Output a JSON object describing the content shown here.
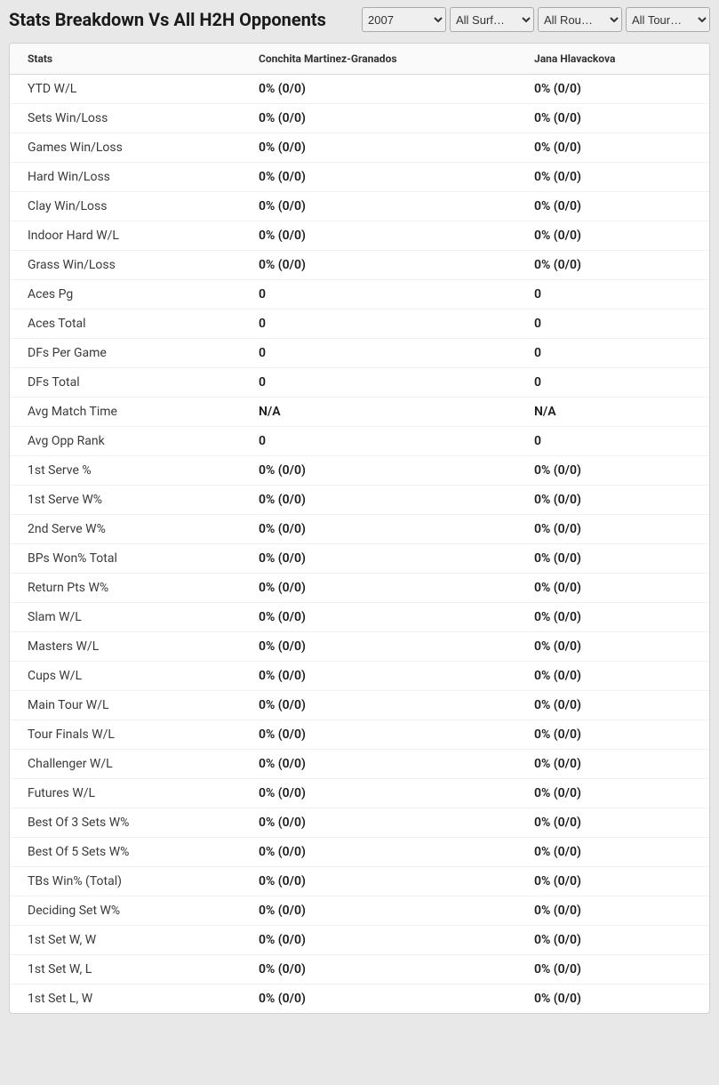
{
  "header": {
    "title": "Stats Breakdown Vs All H2H Opponents"
  },
  "filters": {
    "year": {
      "value": "2007",
      "options": [
        "2007"
      ]
    },
    "surface": {
      "value": "All Surf…",
      "options": [
        "All Surf…"
      ]
    },
    "round": {
      "value": "All Rou…",
      "options": [
        "All Rou…"
      ]
    },
    "tour": {
      "value": "All Tour…",
      "options": [
        "All Tour…"
      ]
    }
  },
  "table": {
    "columns": {
      "stats": "Stats",
      "player1": "Conchita Martinez-Granados",
      "player2": "Jana Hlavackova"
    },
    "rows": [
      {
        "stat": "YTD W/L",
        "p1": "0% (0/0)",
        "p2": "0% (0/0)"
      },
      {
        "stat": "Sets Win/Loss",
        "p1": "0% (0/0)",
        "p2": "0% (0/0)"
      },
      {
        "stat": "Games Win/Loss",
        "p1": "0% (0/0)",
        "p2": "0% (0/0)"
      },
      {
        "stat": "Hard Win/Loss",
        "p1": "0% (0/0)",
        "p2": "0% (0/0)"
      },
      {
        "stat": "Clay Win/Loss",
        "p1": "0% (0/0)",
        "p2": "0% (0/0)"
      },
      {
        "stat": "Indoor Hard W/L",
        "p1": "0% (0/0)",
        "p2": "0% (0/0)"
      },
      {
        "stat": "Grass Win/Loss",
        "p1": "0% (0/0)",
        "p2": "0% (0/0)"
      },
      {
        "stat": "Aces Pg",
        "p1": "0",
        "p2": "0"
      },
      {
        "stat": "Aces Total",
        "p1": "0",
        "p2": "0"
      },
      {
        "stat": "DFs Per Game",
        "p1": "0",
        "p2": "0"
      },
      {
        "stat": "DFs Total",
        "p1": "0",
        "p2": "0"
      },
      {
        "stat": "Avg Match Time",
        "p1": "N/A",
        "p2": "N/A"
      },
      {
        "stat": "Avg Opp Rank",
        "p1": "0",
        "p2": "0"
      },
      {
        "stat": "1st Serve %",
        "p1": "0% (0/0)",
        "p2": "0% (0/0)"
      },
      {
        "stat": "1st Serve W%",
        "p1": "0% (0/0)",
        "p2": "0% (0/0)"
      },
      {
        "stat": "2nd Serve W%",
        "p1": "0% (0/0)",
        "p2": "0% (0/0)"
      },
      {
        "stat": "BPs Won% Total",
        "p1": "0% (0/0)",
        "p2": "0% (0/0)"
      },
      {
        "stat": "Return Pts W%",
        "p1": "0% (0/0)",
        "p2": "0% (0/0)"
      },
      {
        "stat": "Slam W/L",
        "p1": "0% (0/0)",
        "p2": "0% (0/0)"
      },
      {
        "stat": "Masters W/L",
        "p1": "0% (0/0)",
        "p2": "0% (0/0)"
      },
      {
        "stat": "Cups W/L",
        "p1": "0% (0/0)",
        "p2": "0% (0/0)"
      },
      {
        "stat": "Main Tour W/L",
        "p1": "0% (0/0)",
        "p2": "0% (0/0)"
      },
      {
        "stat": "Tour Finals W/L",
        "p1": "0% (0/0)",
        "p2": "0% (0/0)"
      },
      {
        "stat": "Challenger W/L",
        "p1": "0% (0/0)",
        "p2": "0% (0/0)"
      },
      {
        "stat": "Futures W/L",
        "p1": "0% (0/0)",
        "p2": "0% (0/0)"
      },
      {
        "stat": "Best Of 3 Sets W%",
        "p1": "0% (0/0)",
        "p2": "0% (0/0)"
      },
      {
        "stat": "Best Of 5 Sets W%",
        "p1": "0% (0/0)",
        "p2": "0% (0/0)"
      },
      {
        "stat": "TBs Win% (Total)",
        "p1": "0% (0/0)",
        "p2": "0% (0/0)"
      },
      {
        "stat": "Deciding Set W%",
        "p1": "0% (0/0)",
        "p2": "0% (0/0)"
      },
      {
        "stat": "1st Set W, W",
        "p1": "0% (0/0)",
        "p2": "0% (0/0)"
      },
      {
        "stat": "1st Set W, L",
        "p1": "0% (0/0)",
        "p2": "0% (0/0)"
      },
      {
        "stat": "1st Set L, W",
        "p1": "0% (0/0)",
        "p2": "0% (0/0)"
      }
    ]
  }
}
